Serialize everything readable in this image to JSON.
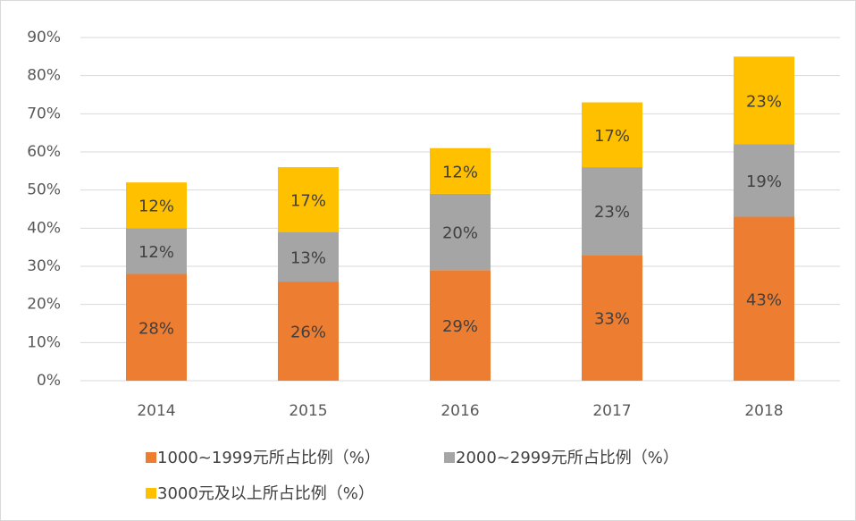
{
  "chart_data": {
    "type": "stacked_bar",
    "categories": [
      "2014",
      "2015",
      "2016",
      "2017",
      "2018"
    ],
    "series": [
      {
        "name": "1000~1999元所占比例（%）",
        "color": "#ed7d31",
        "values": [
          28,
          26,
          29,
          33,
          43
        ],
        "value_labels": [
          "28%",
          "26%",
          "29%",
          "33%",
          "43%"
        ]
      },
      {
        "name": "2000~2999元所占比例（%）",
        "color": "#a5a5a5",
        "values": [
          12,
          13,
          20,
          23,
          19
        ],
        "value_labels": [
          "12%",
          "13%",
          "20%",
          "23%",
          "19%"
        ]
      },
      {
        "name": "3000元及以上所占比例（%）",
        "color": "#ffc000",
        "values": [
          12,
          17,
          12,
          17,
          23
        ],
        "value_labels": [
          "12%",
          "17%",
          "12%",
          "17%",
          "23%"
        ]
      }
    ],
    "ylim": [
      0,
      90
    ],
    "yticks": [
      {
        "value": 0,
        "label": "0%"
      },
      {
        "value": 10,
        "label": "10%"
      },
      {
        "value": 20,
        "label": "20%"
      },
      {
        "value": 30,
        "label": "30%"
      },
      {
        "value": 40,
        "label": "40%"
      },
      {
        "value": 50,
        "label": "50%"
      },
      {
        "value": 60,
        "label": "60%"
      },
      {
        "value": 70,
        "label": "70%"
      },
      {
        "value": 80,
        "label": "80%"
      },
      {
        "value": 90,
        "label": "90%"
      }
    ],
    "grid": true
  }
}
